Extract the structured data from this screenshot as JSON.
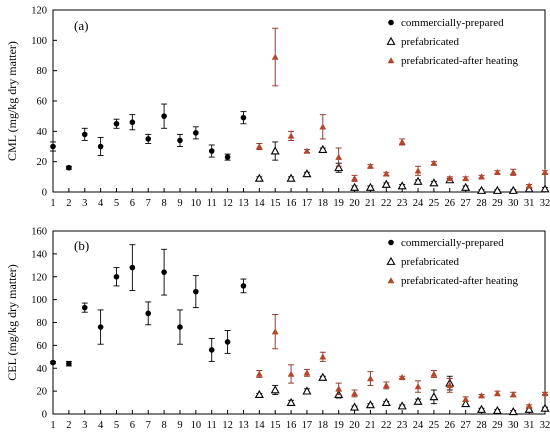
{
  "chart_data": [
    {
      "type": "scatter",
      "panel_label": "(a)",
      "title": "",
      "xlabel": "",
      "ylabel": "CML (mg/kg dry matter)",
      "xlim": [
        1,
        32
      ],
      "ylim": [
        0,
        120
      ],
      "yticks": [
        0,
        20,
        40,
        60,
        80,
        100,
        120
      ],
      "xticks": [
        1,
        2,
        3,
        4,
        5,
        6,
        7,
        8,
        9,
        10,
        11,
        12,
        13,
        14,
        15,
        16,
        17,
        18,
        19,
        20,
        21,
        22,
        23,
        24,
        25,
        26,
        27,
        28,
        29,
        30,
        31,
        32
      ],
      "legend_position": "top-right",
      "series": [
        {
          "name": "commercially-prepared",
          "marker": "filled-circle",
          "color": "#000000",
          "x": [
            1,
            2,
            3,
            4,
            5,
            6,
            7,
            8,
            9,
            10,
            11,
            12,
            13
          ],
          "y": [
            30,
            16,
            38,
            30,
            45,
            46,
            35,
            50,
            34,
            39,
            27,
            23,
            49
          ],
          "err": [
            3,
            1,
            4,
            6,
            3,
            5,
            3,
            8,
            4,
            4,
            4,
            2,
            4
          ]
        },
        {
          "name": "prefabricated",
          "marker": "open-triangle",
          "color": "#000000",
          "x": [
            14,
            15,
            16,
            17,
            18,
            19,
            20,
            21,
            22,
            23,
            24,
            25,
            26,
            27,
            28,
            29,
            30,
            31,
            32
          ],
          "y": [
            9,
            27,
            9,
            12,
            28,
            16,
            3,
            3,
            5,
            4,
            7,
            6,
            8,
            3,
            1,
            1,
            1,
            2,
            2
          ],
          "err": [
            1,
            6,
            1,
            1,
            1,
            3,
            1,
            1,
            1,
            1,
            1,
            1,
            1,
            1,
            0.5,
            0.5,
            0.5,
            0.5,
            1
          ]
        },
        {
          "name": "prefabricated-after heating",
          "marker": "filled-triangle",
          "color": "#b5462a",
          "x": [
            14,
            15,
            16,
            17,
            18,
            19,
            20,
            21,
            22,
            23,
            24,
            25,
            26,
            27,
            28,
            29,
            30,
            31,
            32
          ],
          "y": [
            30,
            89,
            37,
            27,
            43,
            23,
            9,
            17,
            12,
            33,
            14,
            19,
            9,
            9,
            10,
            13,
            13,
            4,
            13
          ],
          "err": [
            2,
            19,
            3,
            1,
            8,
            6,
            2,
            1,
            1,
            2,
            3,
            1,
            1,
            1,
            1,
            1,
            2,
            1,
            1
          ]
        }
      ]
    },
    {
      "type": "scatter",
      "panel_label": "(b)",
      "title": "",
      "xlabel": "",
      "ylabel": "CEL (mg/kg dry matter)",
      "xlim": [
        1,
        32
      ],
      "ylim": [
        0,
        160
      ],
      "yticks": [
        0,
        20,
        40,
        60,
        80,
        100,
        120,
        140,
        160
      ],
      "xticks": [
        1,
        2,
        3,
        4,
        5,
        6,
        7,
        8,
        9,
        10,
        11,
        12,
        13,
        14,
        15,
        16,
        17,
        18,
        19,
        20,
        21,
        22,
        23,
        24,
        25,
        26,
        27,
        28,
        29,
        30,
        31,
        32
      ],
      "legend_position": "top-right",
      "series": [
        {
          "name": "commercially-prepared",
          "marker": "filled-circle",
          "color": "#000000",
          "x": [
            1,
            2,
            3,
            4,
            5,
            6,
            7,
            8,
            9,
            10,
            11,
            12,
            13
          ],
          "y": [
            45,
            44,
            93,
            76,
            120,
            128,
            88,
            124,
            76,
            107,
            56,
            63,
            112
          ],
          "err": [
            1,
            2,
            4,
            15,
            8,
            20,
            10,
            20,
            15,
            14,
            10,
            10,
            6
          ]
        },
        {
          "name": "prefabricated",
          "marker": "open-triangle",
          "color": "#000000",
          "x": [
            14,
            15,
            16,
            17,
            18,
            19,
            20,
            21,
            22,
            23,
            24,
            25,
            26,
            27,
            28,
            29,
            30,
            31,
            32
          ],
          "y": [
            17,
            21,
            10,
            20,
            32,
            17,
            6,
            8,
            10,
            7,
            11,
            15,
            27,
            9,
            4,
            3,
            2,
            4,
            5
          ],
          "err": [
            1,
            4,
            2,
            2,
            1,
            3,
            1,
            1,
            1,
            1,
            2,
            6,
            6,
            2,
            1,
            1,
            1,
            1,
            1
          ]
        },
        {
          "name": "prefabricated-after heating",
          "marker": "filled-triangle",
          "color": "#b5462a",
          "x": [
            14,
            15,
            16,
            17,
            18,
            19,
            20,
            21,
            22,
            23,
            24,
            25,
            26,
            27,
            28,
            29,
            30,
            31,
            32
          ],
          "y": [
            35,
            72,
            35,
            36,
            50,
            22,
            18,
            31,
            25,
            32,
            24,
            35,
            25,
            13,
            16,
            18,
            17,
            7,
            18
          ],
          "err": [
            3,
            15,
            8,
            3,
            4,
            5,
            3,
            6,
            3,
            1,
            5,
            3,
            6,
            2,
            1,
            2,
            2,
            1,
            1
          ]
        }
      ]
    }
  ]
}
